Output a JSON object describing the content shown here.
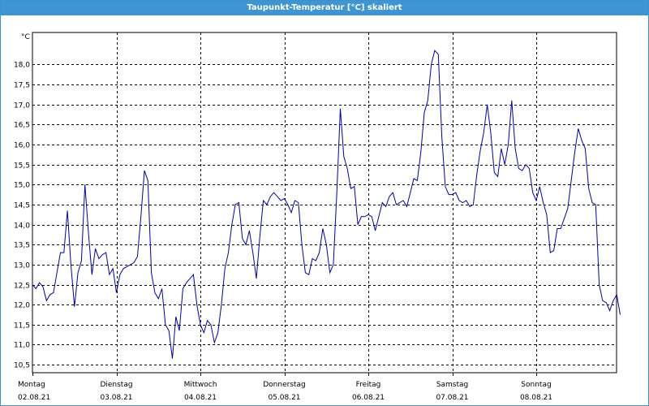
{
  "window": {
    "title": "Taupunkt-Temperatur [°C] skaliert"
  },
  "chart_data": {
    "type": "line",
    "unit": "°C",
    "ylim": [
      10.3,
      18.8
    ],
    "y_ticks": [
      10.5,
      11.0,
      11.5,
      12.0,
      12.5,
      13.0,
      13.5,
      14.0,
      14.5,
      15.0,
      15.5,
      16.0,
      16.5,
      17.0,
      17.5,
      18.0
    ],
    "y_tick_labels": [
      "10,5",
      "11,0",
      "11,5",
      "12,0",
      "12,5",
      "13,0",
      "13,5",
      "14,0",
      "14,5",
      "15,0",
      "15,5",
      "16,0",
      "16,5",
      "17,0",
      "17,5",
      "18,0"
    ],
    "grid": true,
    "line_color": "#0000aa",
    "x_range_hours": [
      0,
      168
    ],
    "days": [
      {
        "weekday": "Montag",
        "date": "02.08.21"
      },
      {
        "weekday": "Dienstag",
        "date": "03.08.21"
      },
      {
        "weekday": "Mittwoch",
        "date": "04.08.21"
      },
      {
        "weekday": "Donnerstag",
        "date": "05.08.21"
      },
      {
        "weekday": "Freitag",
        "date": "06.08.21"
      },
      {
        "weekday": "Samstag",
        "date": "07.08.21"
      },
      {
        "weekday": "Sonntag",
        "date": "08.08.21"
      }
    ],
    "series": [
      {
        "values": [
          12.5,
          12.4,
          12.55,
          12.45,
          12.1,
          12.25,
          12.3,
          12.8,
          13.3,
          13.3,
          14.35,
          13.0,
          11.95,
          12.8,
          13.1,
          15.0,
          13.8,
          12.75,
          13.4,
          13.15,
          13.25,
          13.3,
          12.75,
          12.9,
          12.3,
          12.75,
          12.9,
          12.95,
          13.0,
          13.05,
          13.2,
          14.2,
          15.35,
          15.1,
          12.8,
          12.3,
          12.15,
          12.4,
          11.5,
          11.35,
          10.65,
          11.7,
          11.35,
          12.4,
          12.55,
          12.65,
          12.75,
          12.0,
          11.5,
          11.3,
          11.6,
          11.5,
          11.05,
          11.3,
          12.0,
          12.9,
          13.3,
          14.0,
          14.5,
          14.55,
          13.65,
          13.5,
          13.85,
          13.3,
          12.65,
          13.7,
          14.6,
          14.5,
          14.7,
          14.8,
          14.7,
          14.6,
          14.65,
          14.5,
          14.3,
          14.6,
          14.55,
          13.5,
          12.8,
          12.75,
          13.15,
          13.1,
          13.3,
          13.9,
          13.5,
          12.8,
          13.0,
          14.8,
          16.9,
          15.7,
          15.4,
          14.9,
          14.95,
          14.0,
          14.2,
          14.2,
          14.25,
          14.2,
          13.85,
          14.2,
          14.55,
          14.45,
          14.7,
          14.8,
          14.5,
          14.55,
          14.6,
          14.45,
          14.8,
          15.15,
          15.1,
          15.8,
          16.8,
          17.1,
          18.0,
          18.35,
          18.25,
          16.2,
          14.95,
          14.75,
          14.75,
          14.8,
          14.6,
          14.55,
          14.6,
          14.45,
          14.5,
          15.25,
          15.85,
          16.3,
          17.0,
          16.3,
          15.3,
          15.2,
          15.9,
          15.5,
          16.0,
          17.1,
          15.9,
          15.4,
          15.35,
          15.5,
          15.4,
          14.8,
          14.6,
          14.95,
          14.55,
          14.25,
          13.3,
          13.35,
          13.9,
          13.9,
          14.15,
          14.4,
          15.1,
          15.8,
          16.4,
          16.1,
          15.9,
          14.9,
          14.55,
          14.5,
          12.5,
          12.1,
          12.05,
          11.85,
          12.1,
          12.25,
          11.75
        ]
      }
    ]
  }
}
